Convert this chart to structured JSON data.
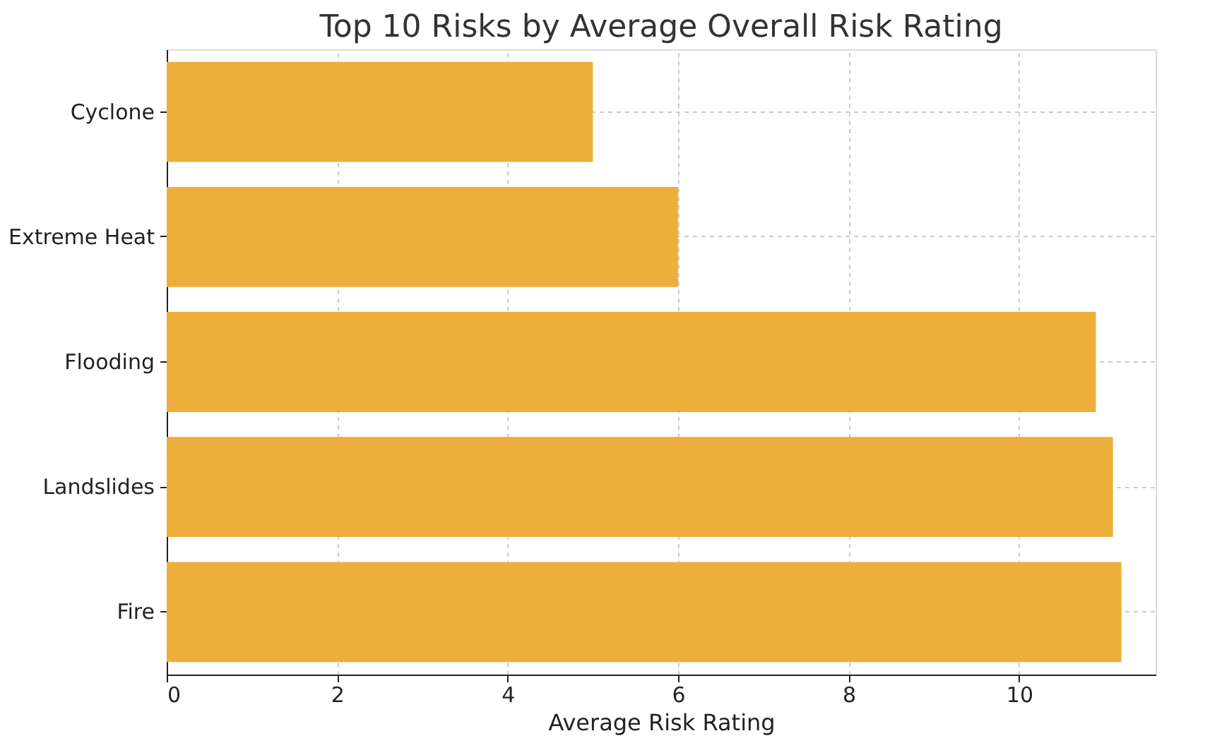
{
  "chart_data": {
    "type": "bar",
    "orientation": "horizontal",
    "title": "Top 10 Risks by Average Overall Risk Rating",
    "xlabel": "Average Risk Rating",
    "categories": [
      "Cyclone",
      "Extreme Heat",
      "Flooding",
      "Landslides",
      "Fire"
    ],
    "values": [
      5.0,
      6.0,
      10.9,
      11.1,
      11.2
    ],
    "color": "#eeae3c",
    "xlim": [
      0,
      11.6
    ],
    "xticks": [
      0,
      2,
      4,
      6,
      8,
      10
    ],
    "grid": true
  }
}
